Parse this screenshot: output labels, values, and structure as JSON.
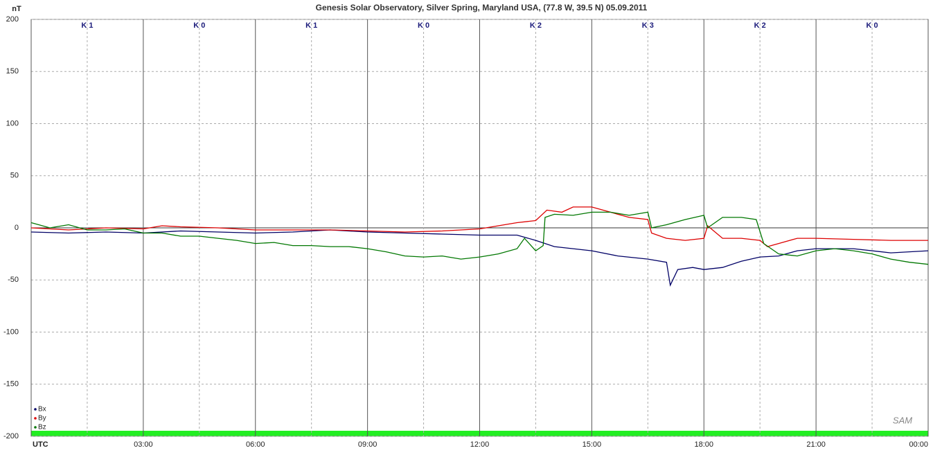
{
  "chart_data": {
    "type": "line",
    "title": "Genesis Solar Observatory, Silver Spring, Maryland USA, (77.8 W, 39.5 N)  05.09.2011",
    "y_label": "nT",
    "logo": "SAM",
    "k_labels": [
      "K 1",
      "K 0",
      "K 1",
      "K 0",
      "K 2",
      "K 3",
      "K 2",
      "K 0"
    ],
    "xlim": [
      0,
      24
    ],
    "xticks": [
      {
        "value": 0,
        "label": "UTC"
      },
      {
        "value": 3,
        "label": "03:00"
      },
      {
        "value": 6,
        "label": "06:00"
      },
      {
        "value": 9,
        "label": "09:00"
      },
      {
        "value": 12,
        "label": "12:00"
      },
      {
        "value": 15,
        "label": "15:00"
      },
      {
        "value": 18,
        "label": "18:00"
      },
      {
        "value": 21,
        "label": "21:00"
      },
      {
        "value": 24,
        "label": "00:00"
      }
    ],
    "x_minor_ticks": [
      1.5,
      4.5,
      7.5,
      10.5,
      13.5,
      16.5,
      19.5,
      22.5
    ],
    "ylim": [
      -200,
      200
    ],
    "yticks": [
      200,
      150,
      100,
      50,
      0,
      -50,
      -100,
      -150,
      -200
    ],
    "grid": true,
    "legend": "lower left",
    "series": [
      {
        "name": "Bx",
        "color": "#000066",
        "x": [
          0,
          1,
          2,
          3,
          4,
          5,
          6,
          7,
          8,
          9,
          10,
          11,
          12,
          13,
          13.5,
          14,
          15,
          15.7,
          16.5,
          17,
          17.1,
          17.3,
          17.7,
          18,
          18.5,
          19,
          19.5,
          20,
          20.5,
          21,
          22,
          23,
          24
        ],
        "values": [
          -4,
          -5,
          -4,
          -5,
          -3,
          -4,
          -5,
          -4,
          -2,
          -4,
          -5,
          -6,
          -7,
          -7,
          -12,
          -18,
          -22,
          -27,
          -30,
          -33,
          -55,
          -40,
          -38,
          -40,
          -38,
          -32,
          -28,
          -27,
          -22,
          -20,
          -20,
          -24,
          -22
        ]
      },
      {
        "name": "By",
        "color": "#dd0000",
        "x": [
          0,
          1,
          2,
          3,
          3.5,
          4,
          5,
          6,
          7,
          8,
          9,
          10,
          11,
          12,
          12.5,
          13,
          13.5,
          13.8,
          14.2,
          14.5,
          15,
          15.5,
          16,
          16.5,
          16.6,
          17,
          17.5,
          18,
          18.1,
          18.5,
          19,
          19.5,
          19.7,
          20,
          20.5,
          21,
          22,
          23,
          24
        ],
        "values": [
          0,
          -2,
          0,
          -1,
          2,
          1,
          0,
          -2,
          -2,
          -2,
          -3,
          -4,
          -3,
          -1,
          2,
          5,
          7,
          17,
          15,
          20,
          20,
          15,
          10,
          8,
          -5,
          -10,
          -12,
          -10,
          2,
          -10,
          -10,
          -12,
          -18,
          -15,
          -10,
          -10,
          -11,
          -12,
          -12
        ]
      },
      {
        "name": "Bz",
        "color": "#007700",
        "x": [
          0,
          0.5,
          1,
          1.5,
          2,
          2.5,
          3,
          3.5,
          4,
          4.5,
          5,
          5.5,
          6,
          6.5,
          7,
          7.5,
          8,
          8.5,
          9,
          9.5,
          10,
          10.5,
          11,
          11.5,
          12,
          12.5,
          13,
          13.2,
          13.5,
          13.7,
          13.75,
          14,
          14.5,
          15,
          15.5,
          16,
          16.5,
          16.6,
          17,
          17.5,
          18,
          18.1,
          18.5,
          19,
          19.4,
          19.6,
          20,
          20.5,
          21,
          21.5,
          22,
          22.5,
          23,
          23.5,
          24
        ],
        "values": [
          5,
          0,
          3,
          -2,
          -2,
          -1,
          -5,
          -5,
          -8,
          -8,
          -10,
          -12,
          -15,
          -14,
          -17,
          -17,
          -18,
          -18,
          -20,
          -23,
          -27,
          -28,
          -27,
          -30,
          -28,
          -25,
          -20,
          -10,
          -22,
          -17,
          10,
          13,
          12,
          15,
          15,
          12,
          15,
          0,
          3,
          8,
          12,
          0,
          10,
          10,
          8,
          -15,
          -25,
          -27,
          -22,
          -20,
          -22,
          -25,
          -30,
          -33,
          -35
        ]
      }
    ]
  }
}
